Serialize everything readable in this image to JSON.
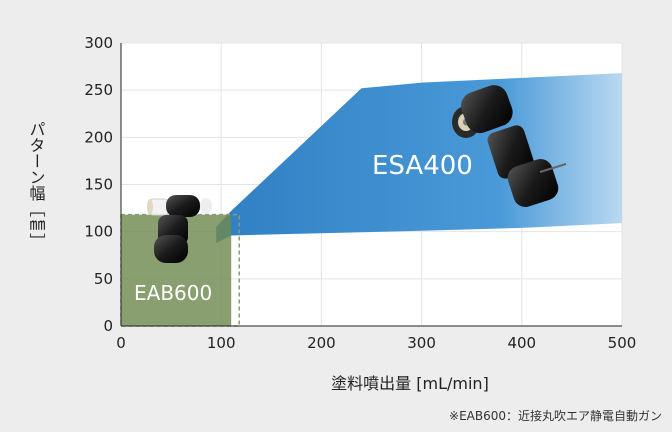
{
  "chart_data": {
    "type": "area",
    "xlabel": "塗料噴出量 [mL/min]",
    "ylabel": "パターン幅［㎜］",
    "xlim": [
      0,
      500
    ],
    "ylim": [
      0,
      300
    ],
    "xticks": [
      0,
      100,
      200,
      300,
      400,
      500
    ],
    "yticks": [
      0,
      50,
      100,
      150,
      200,
      250,
      300
    ],
    "grid": true,
    "regions": [
      {
        "name": "EAB600",
        "shape": "rectangle",
        "x_range": [
          0,
          110
        ],
        "y_range": [
          0,
          118
        ],
        "color": "#6f8a50"
      },
      {
        "name": "ESA400",
        "shape": "band",
        "upper": [
          [
            95,
            105
          ],
          [
            110,
            122
          ],
          [
            240,
            252
          ],
          [
            300,
            258
          ],
          [
            400,
            263
          ],
          [
            500,
            268
          ]
        ],
        "lower": [
          [
            95,
            88
          ],
          [
            110,
            96
          ],
          [
            300,
            101
          ],
          [
            400,
            104
          ],
          [
            500,
            109
          ]
        ],
        "color": "#3f8fcf"
      }
    ],
    "footnote": "※EAB600：近接丸吹エア静電自動ガン",
    "icons": [
      "esa400-gun-icon",
      "eab600-gun-icon"
    ]
  }
}
